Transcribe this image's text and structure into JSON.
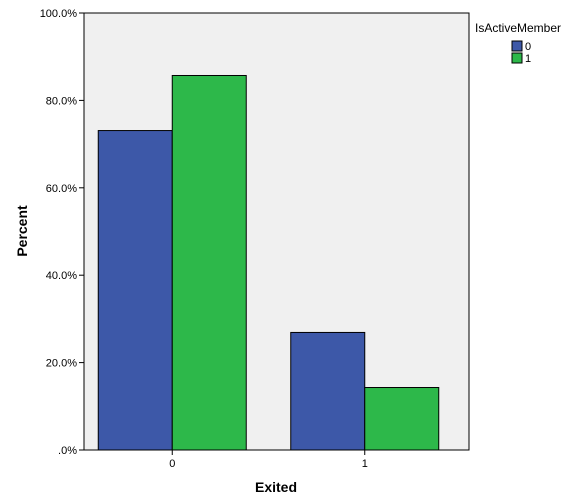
{
  "chart_data": {
    "type": "bar",
    "categories": [
      "0",
      "1"
    ],
    "series": [
      {
        "name": "0",
        "values": [
          73.1,
          26.9
        ],
        "color": "#3d58a8"
      },
      {
        "name": "1",
        "values": [
          85.7,
          14.3
        ],
        "color": "#2db84a"
      }
    ],
    "xlabel": "Exited",
    "ylabel": "Percent",
    "ylim": [
      0,
      100
    ],
    "yticks": [
      0,
      20,
      40,
      60,
      80,
      100
    ],
    "ytick_labels": [
      ".0%",
      "20.0%",
      "40.0%",
      "60.0%",
      "80.0%",
      "100.0%"
    ],
    "legend": {
      "title": "IsActiveMember",
      "placement": "top-right"
    },
    "plot_background": "#f0f0f0",
    "grid": false
  }
}
